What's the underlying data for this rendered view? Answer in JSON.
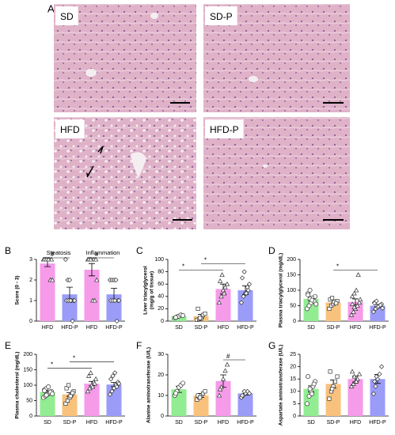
{
  "panel_a": {
    "label": "A",
    "images": [
      "SD",
      "SD-P",
      "HFD",
      "HFD-P"
    ]
  },
  "chart_data": [
    {
      "type": "bar",
      "label": "B",
      "ylabel": [
        "Score (0 - 3)"
      ],
      "group_labels": [
        "Steatosis",
        "Inflammation"
      ],
      "categories": [
        "HFD",
        "HFD-P",
        "HFD",
        "HFD-P"
      ],
      "values": [
        2.8,
        1.3,
        2.5,
        1.3
      ],
      "errors": [
        0.15,
        0.35,
        0.3,
        0.3
      ],
      "colors": [
        "#f59be9",
        "#9a9cf7",
        "#f59be9",
        "#9a9cf7"
      ],
      "markers": [
        "triangle",
        "diamond",
        "triangle",
        "diamond"
      ],
      "points": [
        [
          3,
          3,
          3,
          3,
          3,
          3,
          3,
          3,
          2,
          2
        ],
        [
          3,
          2,
          2,
          1,
          1,
          1,
          1,
          1,
          0,
          1
        ],
        [
          3,
          3,
          3,
          3,
          3,
          3,
          3,
          1,
          1,
          2
        ],
        [
          2,
          2,
          2,
          2,
          1,
          1,
          1,
          1,
          0,
          1
        ]
      ],
      "ylim": [
        0,
        3
      ],
      "yticks": [
        0,
        1,
        2,
        3
      ],
      "annotations": [
        {
          "text": "#",
          "group": "Steatosis"
        },
        {
          "text": "#",
          "group": "Inflammation"
        }
      ]
    },
    {
      "type": "bar",
      "label": "C",
      "ylabel": [
        "Liver triacylglycerol",
        "(mg/g of tissue)"
      ],
      "categories": [
        "SD",
        "SD-P",
        "HFD",
        "HFD-P"
      ],
      "values": [
        8,
        8,
        52,
        50
      ],
      "errors": [
        1.5,
        3,
        8,
        7
      ],
      "colors": [
        "#92ec92",
        "#f8c27d",
        "#f59be9",
        "#9a9cf7"
      ],
      "markers": [
        "circle",
        "square",
        "triangle",
        "diamond"
      ],
      "points": [
        [
          5,
          7,
          8,
          10,
          9,
          6
        ],
        [
          2,
          3,
          4,
          10,
          12,
          20,
          5
        ],
        [
          30,
          40,
          50,
          55,
          60,
          65,
          75,
          45
        ],
        [
          30,
          40,
          45,
          55,
          60,
          70,
          80,
          45,
          50
        ]
      ],
      "ylim": [
        0,
        100
      ],
      "yticks": [
        0,
        20,
        40,
        60,
        80,
        100
      ],
      "annotations": [
        {
          "text": "*",
          "between": [
            "SD",
            "HFD"
          ]
        },
        {
          "text": "*",
          "between": [
            "SD-P",
            "HFD-P"
          ]
        }
      ]
    },
    {
      "type": "bar",
      "label": "D",
      "ylabel": [
        "Plasma triacylglycerol (mg/dL)"
      ],
      "categories": [
        "SD",
        "SD-P",
        "HFD",
        "HFD-P"
      ],
      "values": [
        72,
        60,
        62,
        50
      ],
      "errors": [
        6,
        5,
        10,
        4
      ],
      "colors": [
        "#92ec92",
        "#f8c27d",
        "#f59be9",
        "#9a9cf7"
      ],
      "markers": [
        "circle",
        "square",
        "triangle",
        "diamond"
      ],
      "points": [
        [
          40,
          50,
          60,
          70,
          80,
          90,
          100,
          75,
          65,
          55,
          85,
          72,
          68
        ],
        [
          40,
          50,
          55,
          60,
          65,
          70,
          75,
          62,
          58
        ],
        [
          20,
          30,
          40,
          50,
          60,
          80,
          90,
          100,
          150,
          70,
          55,
          45
        ],
        [
          30,
          40,
          45,
          50,
          55,
          60,
          65,
          48,
          52,
          42,
          58
        ]
      ],
      "ylim": [
        0,
        200
      ],
      "yticks": [
        0,
        50,
        100,
        150,
        200
      ],
      "annotations": [
        {
          "text": "*",
          "between": [
            "SD-P",
            "HFD-P"
          ]
        }
      ]
    },
    {
      "type": "bar",
      "label": "E",
      "ylabel": [
        "Plasma cholesterol (mg/dL)"
      ],
      "categories": [
        "SD",
        "SD-P",
        "HFD",
        "HFD-P"
      ],
      "values": [
        78,
        70,
        105,
        102
      ],
      "errors": [
        4,
        6,
        7,
        7
      ],
      "colors": [
        "#92ec92",
        "#f8c27d",
        "#f59be9",
        "#9a9cf7"
      ],
      "markers": [
        "circle",
        "square",
        "triangle",
        "diamond"
      ],
      "points": [
        [
          60,
          65,
          70,
          75,
          80,
          85,
          90,
          95,
          78,
          72,
          82,
          68
        ],
        [
          40,
          50,
          60,
          70,
          80,
          90,
          100,
          65,
          75
        ],
        [
          80,
          90,
          100,
          110,
          120,
          130,
          140,
          95,
          105
        ],
        [
          70,
          80,
          90,
          100,
          110,
          120,
          130,
          140,
          95,
          105
        ]
      ],
      "ylim": [
        0,
        200
      ],
      "yticks": [
        0,
        50,
        100,
        150,
        200
      ],
      "annotations": [
        {
          "text": "*",
          "between": [
            "SD",
            "HFD"
          ]
        },
        {
          "text": "*",
          "between": [
            "SD-P",
            "HFD-P"
          ]
        }
      ]
    },
    {
      "type": "bar",
      "label": "F",
      "ylabel": [
        "Alanine aminotransferase (U/L)"
      ],
      "categories": [
        "SD",
        "SD-P",
        "HFD",
        "HFD-P"
      ],
      "values": [
        13,
        10,
        17,
        11
      ],
      "errors": [
        1.5,
        1,
        3,
        0.8
      ],
      "colors": [
        "#92ec92",
        "#f8c27d",
        "#f59be9",
        "#9a9cf7"
      ],
      "markers": [
        "circle",
        "square",
        "triangle",
        "diamond"
      ],
      "points": [
        [
          10,
          12,
          14,
          15,
          16,
          11
        ],
        [
          8,
          9,
          10,
          11,
          12,
          10,
          9
        ],
        [
          10,
          14,
          18,
          22,
          25,
          13
        ],
        [
          9,
          10,
          11,
          12,
          11,
          10,
          12
        ]
      ],
      "ylim": [
        0,
        30
      ],
      "yticks": [
        0,
        10,
        20,
        30
      ],
      "annotations": [
        {
          "text": "#",
          "between": [
            "HFD",
            "HFD-P"
          ]
        }
      ]
    },
    {
      "type": "bar",
      "label": "G",
      "ylabel": [
        "Aspartate aminotransferase (U/L)"
      ],
      "categories": [
        "SD",
        "SD-P",
        "HFD",
        "HFD-P"
      ],
      "values": [
        11,
        13,
        15,
        15
      ],
      "errors": [
        1.2,
        1.6,
        1.2,
        1.8
      ],
      "colors": [
        "#92ec92",
        "#f8c27d",
        "#f59be9",
        "#9a9cf7"
      ],
      "markers": [
        "circle",
        "square",
        "triangle",
        "diamond"
      ],
      "points": [
        [
          5,
          8,
          10,
          12,
          14,
          16,
          11,
          9,
          13
        ],
        [
          7,
          10,
          12,
          14,
          16,
          18,
          11
        ],
        [
          12,
          13,
          14,
          15,
          17,
          18,
          16,
          14
        ],
        [
          9,
          12,
          15,
          17,
          20,
          14,
          16
        ]
      ],
      "ylim": [
        0,
        25
      ],
      "yticks": [
        0,
        5,
        10,
        15,
        20,
        25
      ],
      "annotations": []
    }
  ]
}
